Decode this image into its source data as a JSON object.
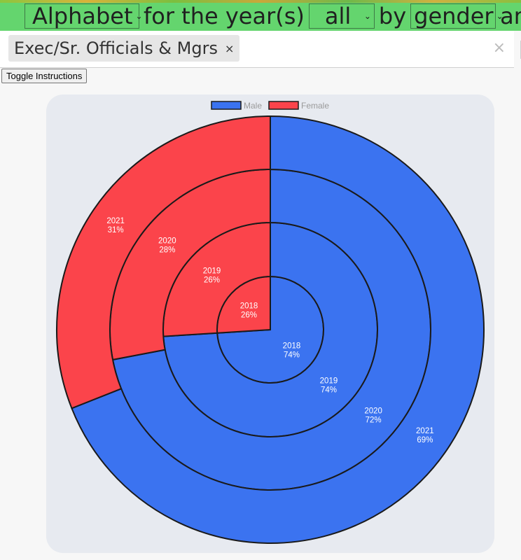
{
  "header": {
    "company_value": "Alphabet",
    "text_for_years": "for the year(s)",
    "year_value": "all",
    "text_by": "by",
    "group_value": "gender",
    "text_and": "and"
  },
  "filter": {
    "chip_label": "Exec/Sr. Officials & Mgrs",
    "chip_remove": "×",
    "clear_all": "×"
  },
  "toggle_label": "Toggle Instructions",
  "colors": {
    "male": "#3b73f0",
    "female": "#fb444b",
    "border": "#1a1a1a"
  },
  "chart_data": {
    "type": "pie",
    "subtype": "nested-doughnut",
    "legend": [
      "Male",
      "Female"
    ],
    "legend_position": "top",
    "series": [
      {
        "name": "2018",
        "Male": 74,
        "Female": 26,
        "male_label": "2018",
        "male_pct": "74%",
        "female_label": "2018",
        "female_pct": "26%"
      },
      {
        "name": "2019",
        "Male": 74,
        "Female": 26,
        "male_label": "2019",
        "male_pct": "74%",
        "female_label": "2019",
        "female_pct": "26%"
      },
      {
        "name": "2020",
        "Male": 72,
        "Female": 28,
        "male_label": "2020",
        "male_pct": "72%",
        "female_label": "2020",
        "female_pct": "28%"
      },
      {
        "name": "2021",
        "Male": 69,
        "Female": 31,
        "male_label": "2021",
        "male_pct": "69%",
        "female_label": "2021",
        "female_pct": "31%"
      }
    ]
  }
}
